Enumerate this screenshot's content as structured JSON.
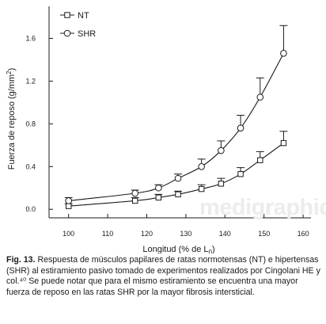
{
  "chart_data": {
    "type": "line",
    "xlabel_main": "Longitud (% de L",
    "xlabel_sub": "0",
    "xlabel_end": ")",
    "ylabel_main": "Fuerza de reposo (g/mm",
    "ylabel_sup": "2",
    "ylabel_end": ")",
    "xlim": [
      95,
      162
    ],
    "ylim": [
      -0.08,
      1.9
    ],
    "x_ticks": [
      100,
      110,
      120,
      130,
      140,
      150,
      160
    ],
    "y_ticks": [
      0.0,
      0.4,
      0.8,
      1.2,
      1.6
    ],
    "y_tick_labels": [
      "0.0",
      "0.4",
      "0.8",
      "1.2",
      "1.6"
    ],
    "series": [
      {
        "name": "NT",
        "marker": "square",
        "x": [
          100,
          117,
          123,
          128,
          134,
          139,
          144,
          149,
          155
        ],
        "y": [
          0.03,
          0.08,
          0.11,
          0.14,
          0.19,
          0.24,
          0.33,
          0.46,
          0.62
        ],
        "err": [
          0.02,
          0.03,
          0.03,
          0.03,
          0.04,
          0.05,
          0.06,
          0.08,
          0.11
        ]
      },
      {
        "name": "SHR",
        "marker": "circle",
        "x": [
          100,
          117,
          123,
          128,
          134,
          139,
          144,
          149,
          155
        ],
        "y": [
          0.08,
          0.15,
          0.2,
          0.29,
          0.4,
          0.55,
          0.76,
          1.05,
          1.46
        ],
        "err": [
          0.03,
          0.03,
          0.03,
          0.04,
          0.07,
          0.09,
          0.12,
          0.18,
          0.26
        ]
      }
    ],
    "legend": "top-left"
  },
  "watermark": "medigraphic",
  "caption": {
    "label": "Fig. 13.",
    "text": "Respuesta de músculos papilares de ratas normotensas (NT) e hipertensas (SHR) al estiramiento pasivo tomado de experimentos realizados por Cingolani HE y col.⁴⁰ Se puede notar que para el mismo estiramiento se encuentra una mayor fuerza de reposo en las ratas SHR por la mayor fibrosis intersticial."
  }
}
